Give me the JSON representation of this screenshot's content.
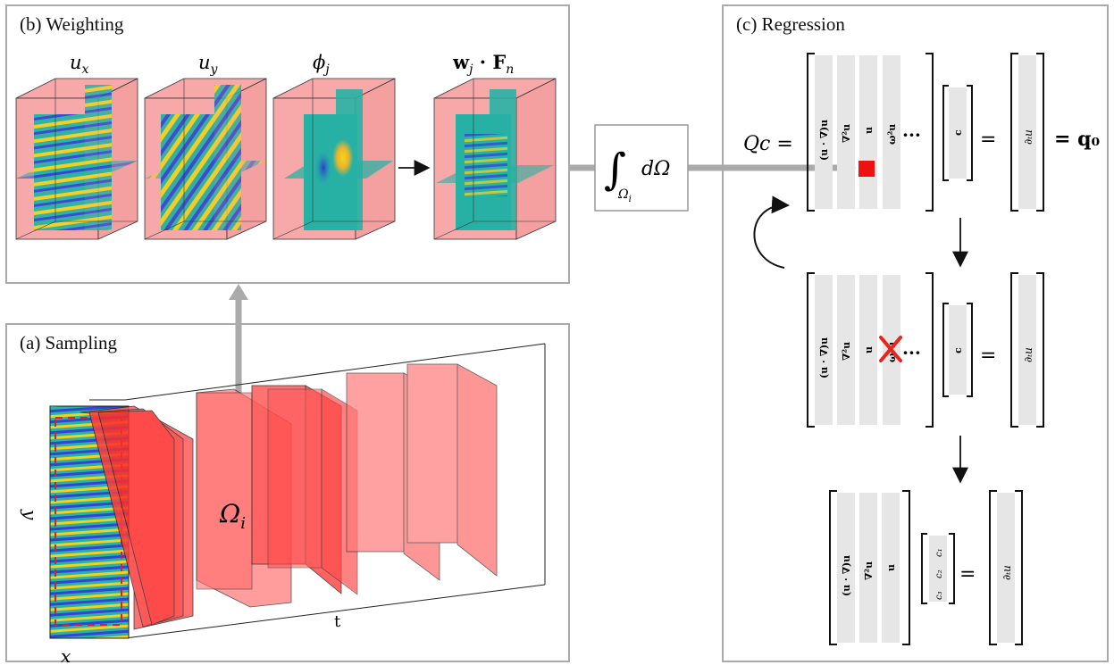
{
  "panels": {
    "weighting": {
      "title": "(b) Weighting"
    },
    "sampling": {
      "title": "(a) Sampling"
    },
    "regression": {
      "title": "(c) Regression"
    }
  },
  "weighting_fields": [
    {
      "label": "u",
      "sub": "x"
    },
    {
      "label": "u",
      "sub": "y"
    },
    {
      "label": "ϕ",
      "sub": "j"
    },
    {
      "label": "w",
      "sub": "j",
      "tail": " · F",
      "sub2": "n"
    }
  ],
  "integral": {
    "symbol": "∫",
    "domain": "Ω",
    "domain_sub": "i",
    "measure": "dΩ"
  },
  "sampling": {
    "omega_label": "Ω",
    "omega_sub": "i",
    "x_axis": "x",
    "y_axis": "y",
    "t_axis": "t"
  },
  "regression": {
    "eq1_lhs": "Qc =",
    "library_terms": [
      "(u · ∇)u",
      "∇²u",
      "u",
      "ω²u"
    ],
    "ellipsis": "···",
    "coef_label": "c",
    "equals": "=",
    "rhs_label": "∂ₜu",
    "q0_label": "= q₀",
    "reduced_terms": [
      "(u · ∇)u",
      "∇²u",
      "u"
    ],
    "final_coefs": [
      "c₁",
      "c₂",
      "c₃"
    ]
  },
  "colors": {
    "panel_border": "#aaaaaa",
    "arrow_gray": "#aaaaaa",
    "sample_red": "#ff4f4f",
    "sample_pink": "#f7a9a9",
    "column_gray": "#e6e6e6",
    "field_teal": "#20b2aa",
    "field_yellow": "#f5d21f",
    "field_blue": "#3a4fd8",
    "cross_red": "#e8251d",
    "highlight_red": "#ee1111"
  }
}
